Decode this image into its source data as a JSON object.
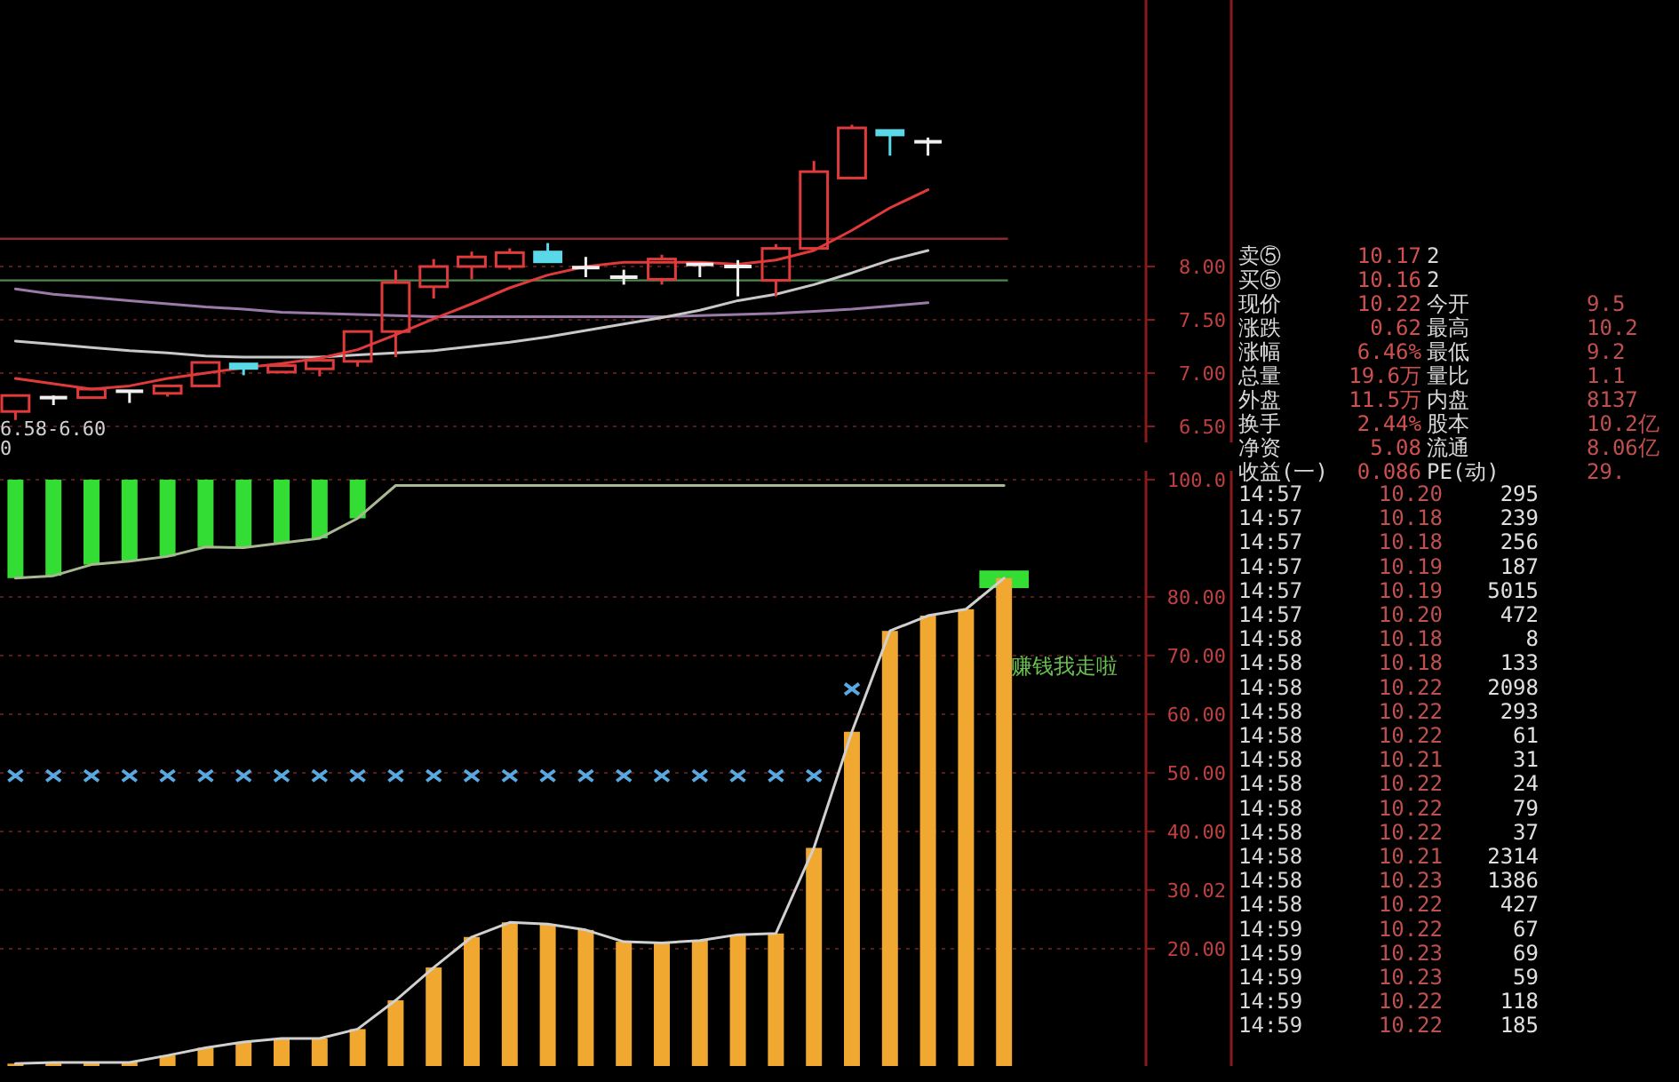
{
  "chart_data": [
    {
      "type": "candlestick",
      "categories": [
        null,
        null,
        null,
        null,
        null,
        null,
        null,
        null,
        null,
        null,
        null,
        null,
        null,
        null,
        null,
        null,
        null,
        null,
        null,
        null,
        null,
        null,
        null,
        null,
        null
      ],
      "ohlc": [
        [
          6.64,
          6.79,
          6.56,
          6.79
        ],
        [
          6.77,
          6.79,
          6.7,
          6.77
        ],
        [
          6.77,
          6.85,
          6.77,
          6.85
        ],
        [
          6.83,
          6.83,
          6.72,
          6.83
        ],
        [
          6.81,
          6.88,
          6.78,
          6.88
        ],
        [
          6.88,
          7.1,
          6.87,
          7.1
        ],
        [
          7.09,
          7.09,
          6.98,
          7.04
        ],
        [
          7.01,
          7.08,
          7.0,
          7.07
        ],
        [
          7.04,
          7.12,
          6.97,
          7.12
        ],
        [
          7.11,
          7.4,
          7.06,
          7.39
        ],
        [
          7.39,
          7.97,
          7.15,
          7.85
        ],
        [
          7.81,
          8.07,
          7.7,
          8.0
        ],
        [
          8.0,
          8.14,
          7.88,
          8.09
        ],
        [
          8.0,
          8.17,
          7.97,
          8.13
        ],
        [
          8.14,
          8.22,
          8.04,
          8.04
        ],
        [
          7.99,
          8.09,
          7.9,
          7.99
        ],
        [
          7.9,
          7.97,
          7.83,
          7.9
        ],
        [
          7.88,
          8.11,
          7.83,
          8.07
        ],
        [
          8.02,
          8.02,
          7.9,
          8.02
        ],
        [
          8.0,
          8.06,
          7.72,
          8.0
        ],
        [
          7.87,
          8.21,
          7.72,
          8.17
        ],
        [
          8.17,
          8.99,
          8.17,
          8.89
        ],
        [
          8.83,
          9.33,
          8.83,
          9.3
        ],
        [
          9.28,
          9.28,
          9.04,
          9.23
        ],
        [
          9.17,
          9.21,
          9.04,
          9.17
        ]
      ],
      "colors": [
        "#e03a3a",
        "#f0f0f0",
        "#e03a3a",
        "#f0f0f0",
        "#e03a3a",
        "#e03a3a",
        "#5ad8e8",
        "#e03a3a",
        "#e03a3a",
        "#e03a3a",
        "#e03a3a",
        "#e03a3a",
        "#e03a3a",
        "#e03a3a",
        "#5ad8e8",
        "#f0f0f0",
        "#f0f0f0",
        "#e03a3a",
        "#f0f0f0",
        "#f0f0f0",
        "#e03a3a",
        "#e03a3a",
        "#e03a3a",
        "#5ad8e8",
        "#f0f0f0"
      ],
      "series": [
        {
          "type": "line",
          "color": "#9a7aa8",
          "values": [
            7.79,
            7.74,
            7.71,
            7.68,
            7.65,
            7.62,
            7.6,
            7.57,
            7.56,
            7.55,
            7.54,
            7.53,
            7.53,
            7.53,
            7.53,
            7.53,
            7.53,
            7.53,
            7.54,
            7.55,
            7.56,
            7.58,
            7.6,
            7.63,
            7.66
          ]
        },
        {
          "type": "line",
          "color": "#c8c8c8",
          "values": [
            7.3,
            7.27,
            7.24,
            7.21,
            7.19,
            7.16,
            7.15,
            7.15,
            7.15,
            7.17,
            7.19,
            7.21,
            7.25,
            7.29,
            7.34,
            7.4,
            7.46,
            7.52,
            7.59,
            7.68,
            7.74,
            7.83,
            7.94,
            8.06,
            8.15
          ]
        },
        {
          "type": "line",
          "color": "#e03a3a",
          "values": [
            6.95,
            6.9,
            6.85,
            6.88,
            6.95,
            7.0,
            7.05,
            7.09,
            7.14,
            7.22,
            7.36,
            7.51,
            7.65,
            7.8,
            7.92,
            8.0,
            8.04,
            8.04,
            8.04,
            8.02,
            8.06,
            8.15,
            8.34,
            8.55,
            8.72
          ]
        }
      ],
      "ref_lines": [
        {
          "axis": "y",
          "value": 8.26,
          "color": "#8b2a2a"
        },
        {
          "axis": "y",
          "value": 7.87,
          "color": "#4a8a4a"
        }
      ],
      "ylim": [
        6.35,
        10.5
      ],
      "yticks": [
        {
          "value": 6.5,
          "label": "6.50"
        },
        {
          "value": 7,
          "label": "7.00"
        },
        {
          "value": 7.5,
          "label": "7.50"
        },
        {
          "value": 8,
          "label": "8.00"
        }
      ],
      "grid": "y",
      "annotations": [
        "6.58-6.60",
        "0"
      ]
    },
    {
      "type": "bar",
      "categories": [
        null,
        null,
        null,
        null,
        null,
        null,
        null,
        null,
        null,
        null,
        null,
        null,
        null,
        null,
        null,
        null,
        null,
        null,
        null,
        null,
        null,
        null,
        null,
        null,
        null,
        null,
        null
      ],
      "series": [
        {
          "type": "bar",
          "color": "#33dd33",
          "base": [
            83.2,
            83.6,
            85.5,
            86.1,
            86.9,
            88.5,
            88.4,
            89.2,
            90.0,
            93.4,
            null,
            null,
            null,
            null,
            null,
            null,
            null,
            null,
            null,
            null,
            null,
            null,
            null,
            null,
            null,
            null,
            81.5
          ],
          "values": [
            16.8,
            16.4,
            14.5,
            13.9,
            13.1,
            11.5,
            11.6,
            10.8,
            10.0,
            6.6,
            null,
            null,
            null,
            null,
            null,
            null,
            null,
            null,
            null,
            null,
            null,
            null,
            null,
            null,
            null,
            null,
            3.0
          ]
        },
        {
          "type": "bar",
          "color": "#f0a830",
          "values": [
            0.4,
            0.6,
            0.6,
            0.6,
            1.8,
            3.1,
            4.1,
            4.7,
            4.7,
            6.3,
            11.2,
            16.8,
            22.0,
            24.5,
            24.2,
            23.2,
            21.2,
            21.0,
            21.4,
            22.4,
            22.6,
            37.2,
            57.0,
            74.2,
            76.8,
            77.9,
            83.2
          ]
        },
        {
          "type": "line",
          "color": "#d0d0d0",
          "values": [
            0.4,
            0.6,
            0.6,
            0.6,
            1.8,
            3.1,
            4.1,
            4.7,
            4.7,
            6.3,
            11.2,
            16.8,
            22.0,
            24.5,
            24.2,
            23.2,
            21.2,
            21.0,
            21.4,
            22.4,
            22.6,
            37.2,
            57.0,
            74.2,
            76.8,
            77.9,
            83.2
          ]
        },
        {
          "type": "line",
          "color": "#a8b890",
          "values": [
            83.2,
            83.6,
            85.5,
            86.1,
            86.9,
            88.5,
            88.4,
            89.2,
            90.0,
            93.4,
            99,
            99,
            99,
            99,
            99,
            99,
            99,
            99,
            99,
            99,
            99,
            99,
            99,
            99,
            99,
            99,
            99
          ]
        },
        {
          "type": "scatter",
          "color": "#5aa8e0",
          "marker": "cross",
          "values": [
            49.5,
            49.5,
            49.5,
            49.5,
            49.5,
            49.5,
            49.5,
            49.5,
            49.5,
            49.5,
            49.5,
            49.5,
            49.5,
            49.5,
            49.5,
            49.5,
            49.5,
            49.5,
            49.5,
            49.5,
            49.5,
            49.5,
            64.3,
            null,
            null,
            null,
            null
          ]
        }
      ],
      "ylim": [
        0,
        101.5
      ],
      "yticks": [
        {
          "value": 20,
          "label": "20.00"
        },
        {
          "value": 30.02,
          "label": "30.02"
        },
        {
          "value": 40,
          "label": "40.00"
        },
        {
          "value": 50,
          "label": "50.00"
        },
        {
          "value": 60,
          "label": "60.00"
        },
        {
          "value": 70,
          "label": "70.00"
        },
        {
          "value": 80,
          "label": "80.00"
        },
        {
          "value": 100,
          "label": "100.0"
        }
      ],
      "grid": "y",
      "annotations": [
        "赚钱我走啦"
      ]
    },
    {
      "type": "other",
      "annotations": [
        "卖⑤ 10.17 2",
        "买⑤ 10.16 2",
        "现价 10.22 今开 9.5",
        "涨跌 0.62 最高 10.2",
        "涨幅 6.46% 最低 9.2",
        "总量 19.6万 量比 1.1",
        "外盘 11.5万 内盘 8137",
        "换手 2.44% 股本 10.2亿",
        "净资 5.08 流通 8.06亿",
        "收益(一) 0.086 PE(动) 29."
      ]
    },
    {
      "type": "other",
      "annotations": [
        "14:57 10.20 295",
        "14:57 10.18 239",
        "14:57 10.18 256",
        "14:57 10.19 187",
        "14:57 10.19 5015",
        "14:57 10.20 472",
        "14:58 10.18 8",
        "14:58 10.18 133",
        "14:58 10.22 2098",
        "14:58 10.22 293",
        "14:58 10.22 61",
        "14:58 10.21 31",
        "14:58 10.22 24",
        "14:58 10.22 79",
        "14:58 10.22 37",
        "14:58 10.21 2314",
        "14:58 10.23 1386",
        "14:58 10.22 427",
        "14:59 10.22 67",
        "14:59 10.23 69",
        "14:59 10.23 59",
        "14:59 10.22 118",
        "14:59 10.22 185"
      ]
    }
  ]
}
